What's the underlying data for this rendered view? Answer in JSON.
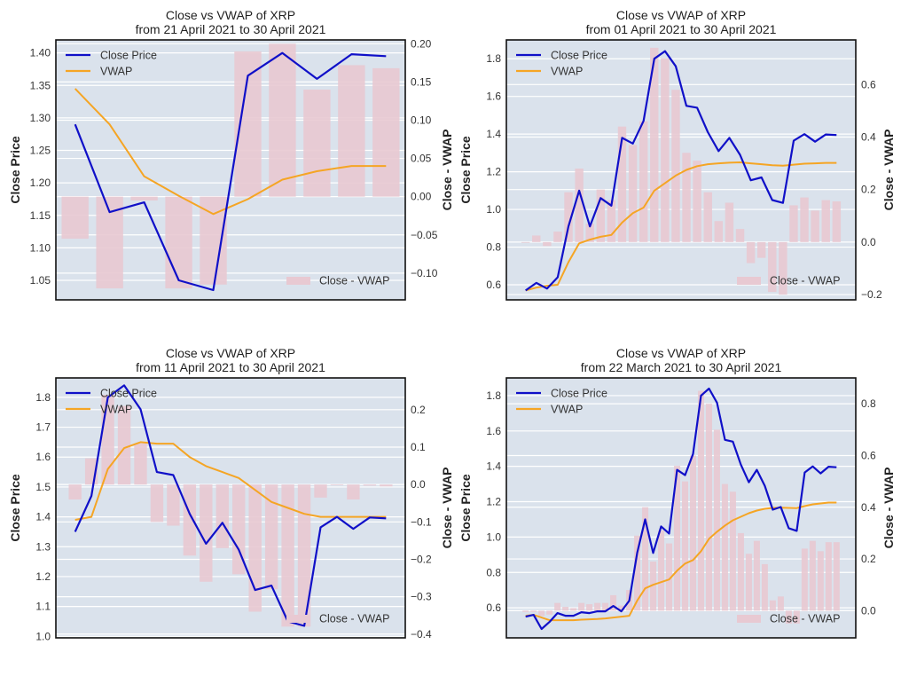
{
  "colors": {
    "close": "#1010c8",
    "vwap": "#f5a524",
    "bar": "#e8c9d2",
    "panel_bg": "#dae2ec",
    "grid": "#ffffff",
    "frame": "#111111"
  },
  "legend": {
    "close_label": "Close Price",
    "vwap_label": "VWAP",
    "bar_label": "Close - VWAP"
  },
  "chart_data": [
    {
      "type": "line",
      "title": "Close vs VWAP of XRP",
      "subtitle": "from 21 April 2021 to 30 April 2021",
      "ylabel": "Close Price",
      "y2label": "Close - VWAP",
      "ylim": [
        1.02,
        1.42
      ],
      "y2lim": [
        -0.135,
        0.205
      ],
      "yticks": [
        1.05,
        1.1,
        1.15,
        1.2,
        1.25,
        1.3,
        1.35,
        1.4
      ],
      "ytick_labels": [
        "1.05",
        "1.10",
        "1.15",
        "1.20",
        "1.25",
        "1.30",
        "1.35",
        "1.40"
      ],
      "y2ticks": [
        -0.1,
        -0.05,
        0.0,
        0.05,
        0.1,
        0.15,
        0.2
      ],
      "y2tick_labels": [
        "−0.10",
        "−0.05",
        "0.00",
        "0.05",
        "0.10",
        "0.15",
        "0.20"
      ],
      "grid": true,
      "legend_lines": "top-left",
      "legend_bar": "bottom-right",
      "series": [
        {
          "name": "Close Price",
          "values": [
            1.29,
            1.155,
            1.17,
            1.05,
            1.035,
            1.365,
            1.4,
            1.36,
            1.398,
            1.395
          ]
        },
        {
          "name": "VWAP",
          "values": [
            1.345,
            1.29,
            1.21,
            1.18,
            1.152,
            1.175,
            1.205,
            1.218,
            1.226,
            1.226
          ]
        },
        {
          "name": "Close - VWAP",
          "axis": "right",
          "kind": "bar",
          "values": [
            -0.055,
            -0.12,
            -0.005,
            -0.12,
            -0.115,
            0.19,
            0.2,
            0.14,
            0.172,
            0.168
          ]
        }
      ]
    },
    {
      "type": "line",
      "title": "Close vs VWAP of XRP",
      "subtitle": "from 01 April 2021 to 30 April 2021",
      "ylabel": "Close Price",
      "y2label": "Close - VWAP",
      "ylim": [
        0.52,
        1.9
      ],
      "y2lim": [
        -0.22,
        0.77
      ],
      "yticks": [
        0.6,
        0.8,
        1.0,
        1.2,
        1.4,
        1.6,
        1.8
      ],
      "ytick_labels": [
        "0.6",
        "0.8",
        "1.0",
        "1.2",
        "1.4",
        "1.6",
        "1.8"
      ],
      "y2ticks": [
        -0.2,
        0.0,
        0.2,
        0.4,
        0.6
      ],
      "y2tick_labels": [
        "−0.2",
        "0.0",
        "0.2",
        "0.4",
        "0.6"
      ],
      "grid": true,
      "legend_lines": "top-left",
      "legend_bar": "bottom-right",
      "series": [
        {
          "name": "Close Price",
          "values": [
            0.57,
            0.61,
            0.58,
            0.64,
            0.91,
            1.1,
            0.91,
            1.06,
            1.02,
            1.38,
            1.35,
            1.47,
            1.8,
            1.84,
            1.76,
            1.55,
            1.54,
            1.41,
            1.31,
            1.38,
            1.29,
            1.155,
            1.17,
            1.05,
            1.035,
            1.365,
            1.4,
            1.36,
            1.398,
            1.395
          ]
        },
        {
          "name": "VWAP",
          "values": [
            0.57,
            0.585,
            0.595,
            0.6,
            0.72,
            0.82,
            0.84,
            0.855,
            0.865,
            0.93,
            0.98,
            1.01,
            1.1,
            1.14,
            1.18,
            1.21,
            1.23,
            1.24,
            1.245,
            1.248,
            1.25,
            1.245,
            1.24,
            1.235,
            1.232,
            1.238,
            1.243,
            1.245,
            1.247,
            1.247
          ]
        },
        {
          "name": "Close - VWAP",
          "axis": "right",
          "kind": "bar",
          "values": [
            0.0,
            0.025,
            -0.015,
            0.04,
            0.19,
            0.28,
            0.07,
            0.2,
            0.16,
            0.44,
            0.37,
            0.46,
            0.74,
            0.7,
            0.58,
            0.34,
            0.31,
            0.19,
            0.08,
            0.15,
            0.05,
            -0.08,
            -0.06,
            -0.19,
            -0.2,
            0.14,
            0.17,
            0.12,
            0.16,
            0.155
          ]
        }
      ]
    },
    {
      "type": "line",
      "title": "Close vs VWAP of XRP",
      "subtitle": "from 11 April 2021 to 30 April 2021",
      "ylabel": "Close Price",
      "y2label": "Close - VWAP",
      "ylim": [
        0.995,
        1.865
      ],
      "y2lim": [
        -0.41,
        0.285
      ],
      "yticks": [
        1.0,
        1.1,
        1.2,
        1.3,
        1.4,
        1.5,
        1.6,
        1.7,
        1.8
      ],
      "ytick_labels": [
        "1.0",
        "1.1",
        "1.2",
        "1.3",
        "1.4",
        "1.5",
        "1.6",
        "1.7",
        "1.8"
      ],
      "y2ticks": [
        -0.4,
        -0.3,
        -0.2,
        -0.1,
        0.0,
        0.1,
        0.2
      ],
      "y2tick_labels": [
        "−0.4",
        "−0.3",
        "−0.2",
        "−0.1",
        "0.0",
        "0.1",
        "0.2"
      ],
      "grid": true,
      "legend_lines": "top-left",
      "legend_bar": "bottom-right",
      "series": [
        {
          "name": "Close Price",
          "values": [
            1.35,
            1.47,
            1.8,
            1.84,
            1.76,
            1.55,
            1.54,
            1.41,
            1.31,
            1.38,
            1.29,
            1.155,
            1.17,
            1.05,
            1.035,
            1.365,
            1.4,
            1.36,
            1.398,
            1.395
          ]
        },
        {
          "name": "VWAP",
          "values": [
            1.39,
            1.4,
            1.56,
            1.63,
            1.65,
            1.645,
            1.645,
            1.6,
            1.57,
            1.55,
            1.53,
            1.49,
            1.45,
            1.43,
            1.41,
            1.4,
            1.4,
            1.4,
            1.4,
            1.4
          ]
        },
        {
          "name": "Close - VWAP",
          "axis": "right",
          "kind": "bar",
          "values": [
            -0.04,
            0.07,
            0.24,
            0.21,
            0.11,
            -0.1,
            -0.11,
            -0.19,
            -0.26,
            -0.17,
            -0.24,
            -0.34,
            -0.28,
            -0.38,
            -0.38,
            -0.035,
            -0.0,
            -0.04,
            -0.003,
            -0.005
          ]
        }
      ]
    },
    {
      "type": "line",
      "title": "Close vs VWAP of XRP",
      "subtitle": "from 22 March 2021 to 30 April 2021",
      "ylabel": "Close Price",
      "y2label": "Close - VWAP",
      "ylim": [
        0.43,
        1.9
      ],
      "y2lim": [
        -0.105,
        0.9
      ],
      "yticks": [
        0.6,
        0.8,
        1.0,
        1.2,
        1.4,
        1.6,
        1.8
      ],
      "ytick_labels": [
        "0.6",
        "0.8",
        "1.0",
        "1.2",
        "1.4",
        "1.6",
        "1.8"
      ],
      "y2ticks": [
        0.0,
        0.2,
        0.4,
        0.6,
        0.8
      ],
      "y2tick_labels": [
        "0.0",
        "0.2",
        "0.4",
        "0.6",
        "0.8"
      ],
      "grid": true,
      "legend_lines": "top-left",
      "legend_bar": "bottom-right",
      "series": [
        {
          "name": "Close Price",
          "values": [
            0.55,
            0.56,
            0.48,
            0.52,
            0.57,
            0.555,
            0.555,
            0.575,
            0.57,
            0.58,
            0.58,
            0.61,
            0.58,
            0.64,
            0.91,
            1.1,
            0.91,
            1.06,
            1.02,
            1.38,
            1.35,
            1.47,
            1.8,
            1.84,
            1.76,
            1.55,
            1.54,
            1.41,
            1.31,
            1.38,
            1.29,
            1.155,
            1.17,
            1.05,
            1.035,
            1.365,
            1.4,
            1.36,
            1.398,
            1.395
          ]
        },
        {
          "name": "VWAP",
          "values": [
            0.555,
            0.56,
            0.545,
            0.53,
            0.53,
            0.53,
            0.53,
            0.533,
            0.535,
            0.537,
            0.54,
            0.545,
            0.55,
            0.555,
            0.64,
            0.71,
            0.73,
            0.745,
            0.76,
            0.81,
            0.85,
            0.87,
            0.92,
            0.99,
            1.03,
            1.065,
            1.095,
            1.115,
            1.135,
            1.15,
            1.16,
            1.165,
            1.166,
            1.165,
            1.164,
            1.175,
            1.185,
            1.19,
            1.195,
            1.195
          ]
        },
        {
          "name": "Close - VWAP",
          "axis": "right",
          "kind": "bar",
          "values": [
            -0.005,
            -0.005,
            -0.02,
            -0.015,
            0.03,
            0.015,
            0.01,
            0.03,
            0.025,
            0.03,
            0.03,
            0.06,
            0.02,
            0.08,
            0.29,
            0.4,
            0.19,
            0.31,
            0.26,
            0.56,
            0.5,
            0.6,
            0.85,
            0.8,
            0.7,
            0.49,
            0.46,
            0.3,
            0.22,
            0.27,
            0.18,
            0.04,
            0.055,
            -0.05,
            -0.05,
            0.24,
            0.27,
            0.23,
            0.265,
            0.265
          ]
        }
      ]
    }
  ]
}
